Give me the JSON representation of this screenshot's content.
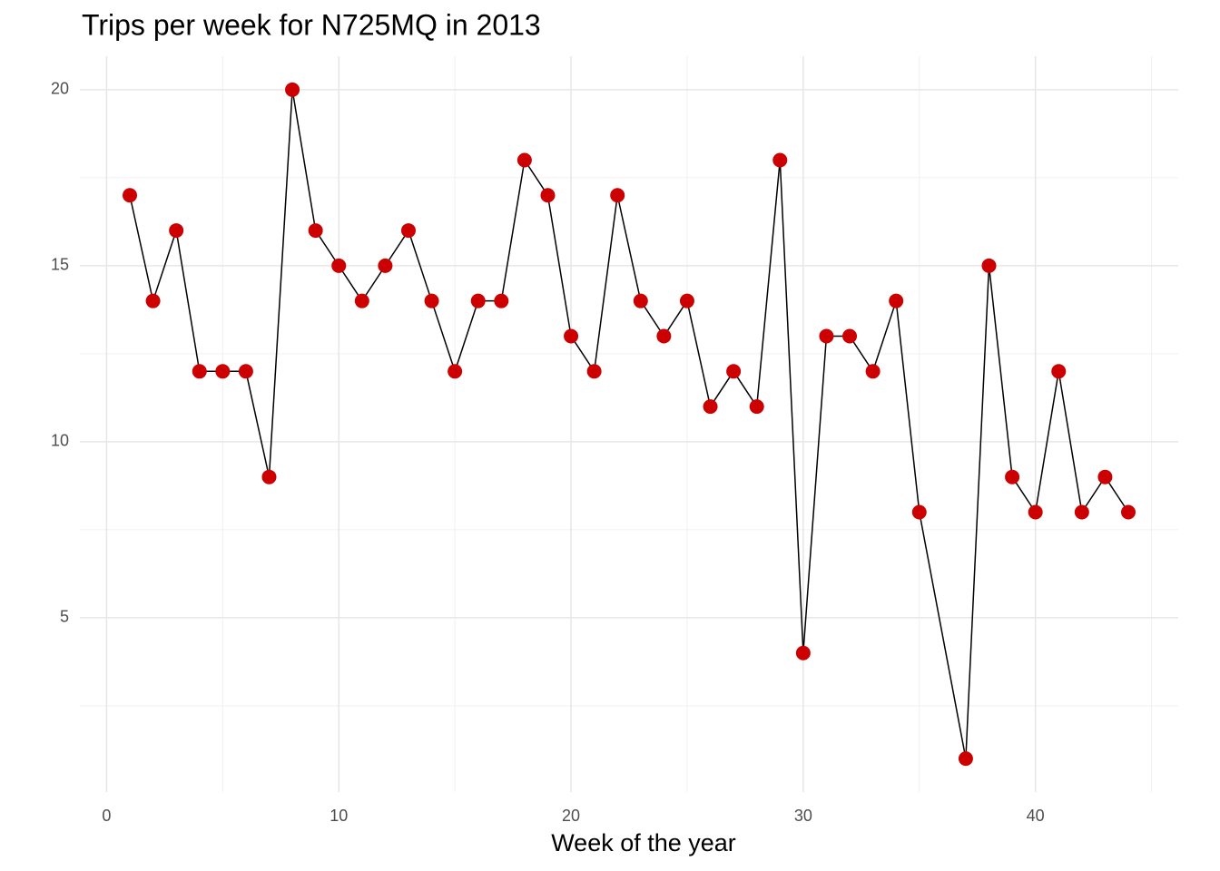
{
  "chart_data": {
    "type": "line",
    "title": "Trips per week for N725MQ in 2013",
    "x_label": "Week of the year",
    "x": [
      1,
      2,
      3,
      4,
      5,
      6,
      7,
      8,
      9,
      10,
      11,
      12,
      13,
      14,
      15,
      16,
      17,
      18,
      19,
      20,
      21,
      22,
      23,
      24,
      25,
      26,
      27,
      28,
      29,
      30,
      31,
      32,
      33,
      34,
      35,
      37,
      38,
      39,
      40,
      41,
      42,
      43,
      44
    ],
    "series": [
      {
        "color": "#cc0000",
        "values": [
          17,
          14,
          16,
          12,
          12,
          12,
          9,
          20,
          16,
          15,
          14,
          15,
          16,
          14,
          12,
          14,
          14,
          18,
          17,
          13,
          12,
          17,
          14,
          13,
          14,
          11,
          12,
          11,
          18,
          4,
          13,
          13,
          12,
          14,
          8,
          1,
          15,
          9,
          8,
          12,
          8,
          9,
          8
        ]
      }
    ],
    "xlim": [
      -1.15,
      46.15
    ],
    "ylim": [
      0.05,
      20.95
    ],
    "xticks": [
      0,
      10,
      20,
      30,
      40
    ],
    "yticks": [
      5,
      10,
      15,
      20
    ],
    "grid": true,
    "minor_grid": true,
    "line_color": "#000000"
  }
}
